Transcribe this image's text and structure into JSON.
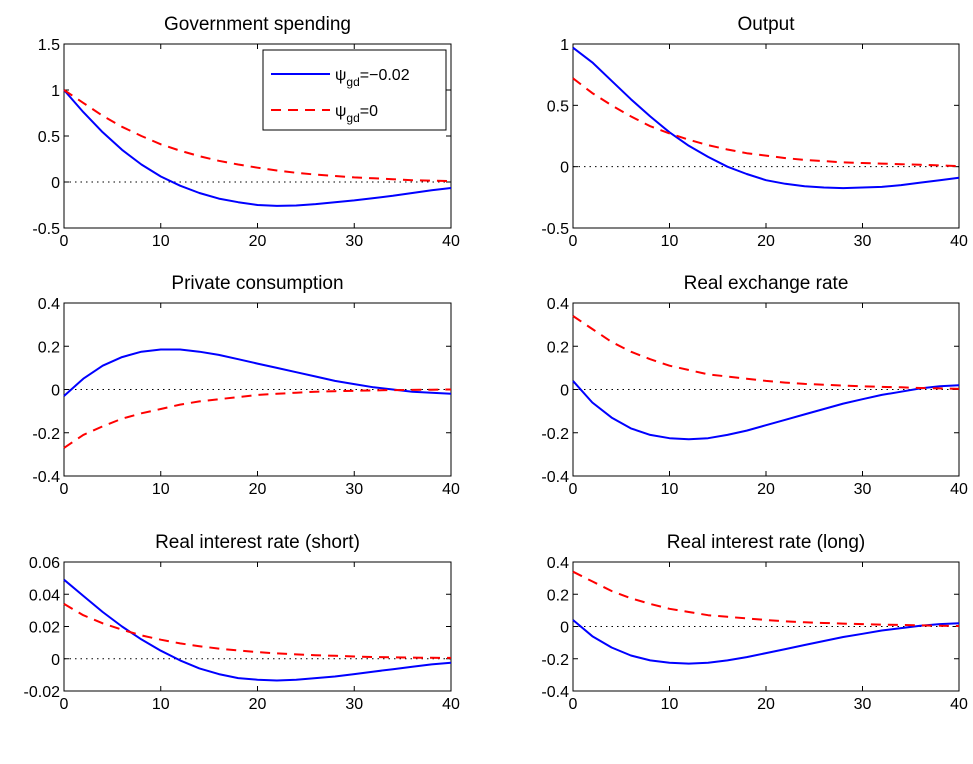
{
  "legend": {
    "entries": [
      {
        "base": "ψ",
        "sub": "gd",
        "suffix": "=−0.02",
        "color": "#0000ff",
        "dash": "solid"
      },
      {
        "base": "ψ",
        "sub": "gd",
        "suffix": "=0",
        "color": "#ff0000",
        "dash": "dashed"
      }
    ]
  },
  "chart_data": [
    {
      "type": "line",
      "title": "Government spending",
      "xlim": [
        0,
        40
      ],
      "ylim": [
        -0.5,
        1.5
      ],
      "xticks": [
        "0",
        "10",
        "20",
        "30",
        "40"
      ],
      "yticks": [
        "-0.5",
        "0",
        "0.5",
        "1",
        "1.5"
      ],
      "yticks_values": [
        -0.5,
        0,
        0.5,
        1,
        1.5
      ],
      "xticks_values": [
        0,
        10,
        20,
        30,
        40
      ],
      "zero_line": true,
      "grid": false,
      "legend_position": "top-right",
      "series": [
        {
          "color": "#0000ff",
          "dash": "solid",
          "x": [
            0,
            2,
            4,
            6,
            8,
            10,
            12,
            14,
            16,
            18,
            20,
            22,
            24,
            26,
            28,
            30,
            32,
            34,
            36,
            38,
            40
          ],
          "y": [
            1.0,
            0.76,
            0.54,
            0.35,
            0.19,
            0.06,
            -0.04,
            -0.12,
            -0.18,
            -0.22,
            -0.25,
            -0.26,
            -0.255,
            -0.24,
            -0.22,
            -0.2,
            -0.175,
            -0.15,
            -0.12,
            -0.09,
            -0.065
          ]
        },
        {
          "color": "#ff0000",
          "dash": "dashed",
          "x": [
            0,
            2,
            4,
            6,
            8,
            10,
            12,
            14,
            16,
            18,
            20,
            22,
            24,
            26,
            28,
            30,
            32,
            34,
            36,
            38,
            40
          ],
          "y": [
            1.0,
            0.86,
            0.72,
            0.6,
            0.5,
            0.41,
            0.34,
            0.28,
            0.23,
            0.19,
            0.155,
            0.125,
            0.1,
            0.08,
            0.065,
            0.05,
            0.04,
            0.03,
            0.02,
            0.015,
            0.01
          ]
        }
      ]
    },
    {
      "type": "line",
      "title": "Output",
      "xlim": [
        0,
        40
      ],
      "ylim": [
        -0.5,
        1
      ],
      "xticks": [
        "0",
        "10",
        "20",
        "30",
        "40"
      ],
      "yticks": [
        "-0.5",
        "0",
        "0.5",
        "1"
      ],
      "yticks_values": [
        -0.5,
        0,
        0.5,
        1
      ],
      "xticks_values": [
        0,
        10,
        20,
        30,
        40
      ],
      "zero_line": true,
      "grid": false,
      "series": [
        {
          "color": "#0000ff",
          "dash": "solid",
          "x": [
            0,
            2,
            4,
            6,
            8,
            10,
            12,
            14,
            16,
            18,
            20,
            22,
            24,
            26,
            28,
            30,
            32,
            34,
            36,
            38,
            40
          ],
          "y": [
            0.97,
            0.85,
            0.7,
            0.55,
            0.41,
            0.28,
            0.17,
            0.08,
            0.0,
            -0.06,
            -0.11,
            -0.14,
            -0.16,
            -0.17,
            -0.175,
            -0.17,
            -0.165,
            -0.15,
            -0.13,
            -0.11,
            -0.09
          ]
        },
        {
          "color": "#ff0000",
          "dash": "dashed",
          "x": [
            0,
            2,
            4,
            6,
            8,
            10,
            12,
            14,
            16,
            18,
            20,
            22,
            24,
            26,
            28,
            30,
            32,
            34,
            36,
            38,
            40
          ],
          "y": [
            0.72,
            0.6,
            0.5,
            0.41,
            0.33,
            0.27,
            0.22,
            0.175,
            0.14,
            0.11,
            0.09,
            0.07,
            0.055,
            0.045,
            0.035,
            0.03,
            0.025,
            0.02,
            0.015,
            0.01,
            0.005
          ]
        }
      ]
    },
    {
      "type": "line",
      "title": "Private consumption",
      "xlim": [
        0,
        40
      ],
      "ylim": [
        -0.4,
        0.4
      ],
      "xticks": [
        "0",
        "10",
        "20",
        "30",
        "40"
      ],
      "yticks": [
        "-0.4",
        "-0.2",
        "0",
        "0.2",
        "0.4"
      ],
      "yticks_values": [
        -0.4,
        -0.2,
        0,
        0.2,
        0.4
      ],
      "xticks_values": [
        0,
        10,
        20,
        30,
        40
      ],
      "zero_line": true,
      "grid": false,
      "series": [
        {
          "color": "#0000ff",
          "dash": "solid",
          "x": [
            0,
            2,
            4,
            6,
            8,
            10,
            12,
            14,
            16,
            18,
            20,
            22,
            24,
            26,
            28,
            30,
            32,
            34,
            36,
            38,
            40
          ],
          "y": [
            -0.03,
            0.05,
            0.11,
            0.15,
            0.175,
            0.185,
            0.185,
            0.175,
            0.16,
            0.14,
            0.12,
            0.1,
            0.08,
            0.06,
            0.04,
            0.025,
            0.01,
            0.0,
            -0.01,
            -0.015,
            -0.02
          ]
        },
        {
          "color": "#ff0000",
          "dash": "dashed",
          "x": [
            0,
            2,
            4,
            6,
            8,
            10,
            12,
            14,
            16,
            18,
            20,
            22,
            24,
            26,
            28,
            30,
            32,
            34,
            36,
            38,
            40
          ],
          "y": [
            -0.27,
            -0.21,
            -0.17,
            -0.135,
            -0.11,
            -0.09,
            -0.07,
            -0.055,
            -0.045,
            -0.035,
            -0.025,
            -0.02,
            -0.015,
            -0.01,
            -0.008,
            -0.006,
            -0.004,
            -0.003,
            -0.002,
            -0.001,
            0.0
          ]
        }
      ]
    },
    {
      "type": "line",
      "title": "Real exchange rate",
      "xlim": [
        0,
        40
      ],
      "ylim": [
        -0.4,
        0.4
      ],
      "xticks": [
        "0",
        "10",
        "20",
        "30",
        "40"
      ],
      "yticks": [
        "-0.4",
        "-0.2",
        "0",
        "0.2",
        "0.4"
      ],
      "yticks_values": [
        -0.4,
        -0.2,
        0,
        0.2,
        0.4
      ],
      "xticks_values": [
        0,
        10,
        20,
        30,
        40
      ],
      "zero_line": true,
      "grid": false,
      "series": [
        {
          "color": "#0000ff",
          "dash": "solid",
          "x": [
            0,
            2,
            4,
            6,
            8,
            10,
            12,
            14,
            16,
            18,
            20,
            22,
            24,
            26,
            28,
            30,
            32,
            34,
            36,
            38,
            40
          ],
          "y": [
            0.04,
            -0.06,
            -0.13,
            -0.18,
            -0.21,
            -0.225,
            -0.23,
            -0.225,
            -0.21,
            -0.19,
            -0.165,
            -0.14,
            -0.115,
            -0.09,
            -0.065,
            -0.045,
            -0.025,
            -0.01,
            0.005,
            0.015,
            0.02
          ]
        },
        {
          "color": "#ff0000",
          "dash": "dashed",
          "x": [
            0,
            2,
            4,
            6,
            8,
            10,
            12,
            14,
            16,
            18,
            20,
            22,
            24,
            26,
            28,
            30,
            32,
            34,
            36,
            38,
            40
          ],
          "y": [
            0.34,
            0.28,
            0.22,
            0.175,
            0.14,
            0.11,
            0.09,
            0.07,
            0.06,
            0.05,
            0.04,
            0.032,
            0.026,
            0.022,
            0.018,
            0.015,
            0.012,
            0.01,
            0.007,
            0.005,
            0.003
          ]
        }
      ]
    },
    {
      "type": "line",
      "title": "Real interest rate (short)",
      "xlim": [
        0,
        40
      ],
      "ylim": [
        -0.02,
        0.06
      ],
      "xticks": [
        "0",
        "10",
        "20",
        "30",
        "40"
      ],
      "yticks": [
        "-0.02",
        "0",
        "0.02",
        "0.04",
        "0.06"
      ],
      "yticks_values": [
        -0.02,
        0,
        0.02,
        0.04,
        0.06
      ],
      "xticks_values": [
        0,
        10,
        20,
        30,
        40
      ],
      "zero_line": true,
      "grid": false,
      "series": [
        {
          "color": "#0000ff",
          "dash": "solid",
          "x": [
            0,
            2,
            4,
            6,
            8,
            10,
            12,
            14,
            16,
            18,
            20,
            22,
            24,
            26,
            28,
            30,
            32,
            34,
            36,
            38,
            40
          ],
          "y": [
            0.049,
            0.039,
            0.029,
            0.02,
            0.012,
            0.005,
            -0.001,
            -0.006,
            -0.0095,
            -0.012,
            -0.013,
            -0.0135,
            -0.013,
            -0.012,
            -0.011,
            -0.0095,
            -0.008,
            -0.0065,
            -0.005,
            -0.0035,
            -0.0025
          ]
        },
        {
          "color": "#ff0000",
          "dash": "dashed",
          "x": [
            0,
            2,
            4,
            6,
            8,
            10,
            12,
            14,
            16,
            18,
            20,
            22,
            24,
            26,
            28,
            30,
            32,
            34,
            36,
            38,
            40
          ],
          "y": [
            0.034,
            0.027,
            0.022,
            0.018,
            0.0145,
            0.0118,
            0.0095,
            0.0078,
            0.0063,
            0.0051,
            0.0041,
            0.0033,
            0.0027,
            0.0022,
            0.0018,
            0.0014,
            0.0011,
            0.0009,
            0.0007,
            0.0006,
            0.0005
          ]
        }
      ]
    },
    {
      "type": "line",
      "title": "Real interest rate (long)",
      "xlim": [
        0,
        40
      ],
      "ylim": [
        -0.4,
        0.4
      ],
      "xticks": [
        "0",
        "10",
        "20",
        "30",
        "40"
      ],
      "yticks": [
        "-0.4",
        "-0.2",
        "0",
        "0.2",
        "0.4"
      ],
      "yticks_values": [
        -0.4,
        -0.2,
        0,
        0.2,
        0.4
      ],
      "xticks_values": [
        0,
        10,
        20,
        30,
        40
      ],
      "zero_line": true,
      "grid": false,
      "series": [
        {
          "color": "#0000ff",
          "dash": "solid",
          "x": [
            0,
            2,
            4,
            6,
            8,
            10,
            12,
            14,
            16,
            18,
            20,
            22,
            24,
            26,
            28,
            30,
            32,
            34,
            36,
            38,
            40
          ],
          "y": [
            0.04,
            -0.06,
            -0.13,
            -0.18,
            -0.21,
            -0.225,
            -0.23,
            -0.225,
            -0.21,
            -0.19,
            -0.165,
            -0.14,
            -0.115,
            -0.09,
            -0.065,
            -0.045,
            -0.025,
            -0.01,
            0.005,
            0.015,
            0.02
          ]
        },
        {
          "color": "#ff0000",
          "dash": "dashed",
          "x": [
            0,
            2,
            4,
            6,
            8,
            10,
            12,
            14,
            16,
            18,
            20,
            22,
            24,
            26,
            28,
            30,
            32,
            34,
            36,
            38,
            40
          ],
          "y": [
            0.34,
            0.28,
            0.22,
            0.175,
            0.14,
            0.11,
            0.09,
            0.07,
            0.06,
            0.05,
            0.04,
            0.032,
            0.026,
            0.022,
            0.018,
            0.015,
            0.012,
            0.01,
            0.007,
            0.005,
            0.003
          ]
        }
      ]
    }
  ]
}
